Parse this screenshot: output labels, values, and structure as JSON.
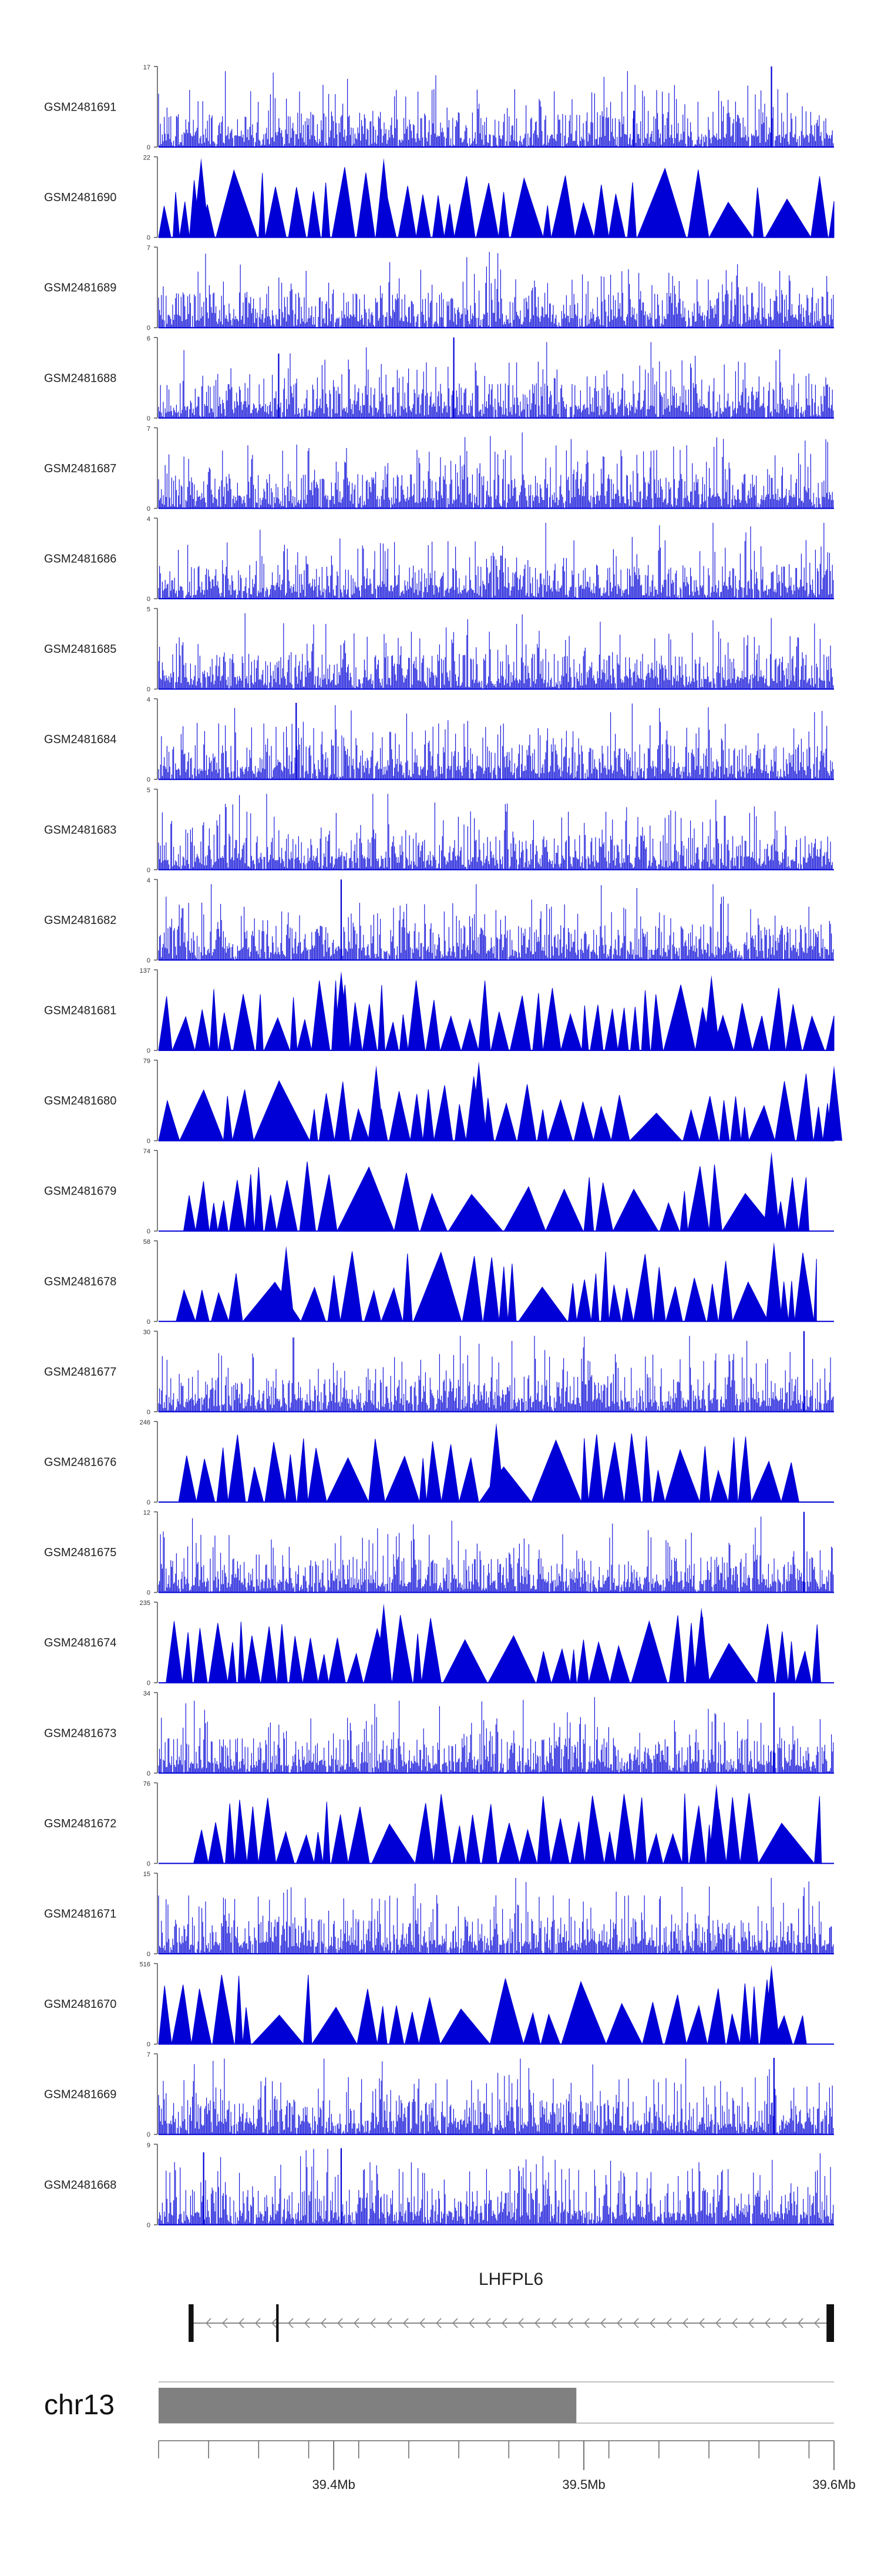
{
  "chart_data": {
    "type": "genome-browser-tracks",
    "x_units": "Mb",
    "xlim": [
      39.33,
      39.6
    ],
    "tracks": [
      {
        "name": "GSM2481691",
        "ymax": "17",
        "ymin": "0",
        "style": "bars",
        "seed": 11,
        "peaks": [
          [
            39.52,
            0.45
          ],
          [
            39.575,
            1.0
          ]
        ]
      },
      {
        "name": "GSM2481690",
        "ymax": "22",
        "ymin": "0",
        "style": "triangles",
        "seed": 12,
        "peaks": [
          [
            39.347,
            1.0
          ],
          [
            39.42,
            1.0
          ]
        ]
      },
      {
        "name": "GSM2481689",
        "ymax": "7",
        "ymin": "0",
        "style": "bars",
        "seed": 13,
        "peaks": []
      },
      {
        "name": "GSM2481688",
        "ymax": "6",
        "ymin": "0",
        "style": "bars",
        "seed": 14,
        "peaks": [
          [
            39.378,
            0.8
          ],
          [
            39.448,
            1.0
          ]
        ]
      },
      {
        "name": "GSM2481687",
        "ymax": "7",
        "ymin": "0",
        "style": "bars",
        "seed": 15,
        "peaks": []
      },
      {
        "name": "GSM2481686",
        "ymax": "4",
        "ymin": "0",
        "style": "bars",
        "seed": 16,
        "peaks": []
      },
      {
        "name": "GSM2481685",
        "ymax": "5",
        "ymin": "0",
        "style": "bars",
        "seed": 17,
        "peaks": []
      },
      {
        "name": "GSM2481684",
        "ymax": "4",
        "ymin": "0",
        "style": "bars",
        "seed": 18,
        "peaks": [
          [
            39.385,
            0.95
          ]
        ]
      },
      {
        "name": "GSM2481683",
        "ymax": "5",
        "ymin": "0",
        "style": "bars",
        "seed": 19,
        "peaks": []
      },
      {
        "name": "GSM2481682",
        "ymax": "4",
        "ymin": "0",
        "style": "bars",
        "seed": 20,
        "peaks": [
          [
            39.403,
            1.0
          ]
        ]
      },
      {
        "name": "GSM2481681",
        "ymax": "137",
        "ymin": "0",
        "style": "triangles",
        "seed": 21,
        "peaks": [
          [
            39.403,
            1.0
          ],
          [
            39.551,
            0.95
          ]
        ]
      },
      {
        "name": "GSM2481680",
        "ymax": "79",
        "ymin": "0",
        "style": "triangles",
        "seed": 22,
        "peaks": [
          [
            39.417,
            0.95
          ],
          [
            39.458,
            1.0
          ],
          [
            39.6,
            0.95
          ]
        ]
      },
      {
        "name": "GSM2481679",
        "ymax": "74",
        "ymin": "0",
        "style": "triangles",
        "seed": 23,
        "peaks": [
          [
            39.575,
            1.0
          ]
        ],
        "span": [
          39.34,
          39.59
        ]
      },
      {
        "name": "GSM2481678",
        "ymax": "58",
        "ymin": "0",
        "style": "triangles",
        "seed": 24,
        "peaks": [
          [
            39.381,
            0.95
          ],
          [
            39.576,
            1.0
          ]
        ],
        "span": [
          39.337,
          39.593
        ]
      },
      {
        "name": "GSM2481677",
        "ymax": "30",
        "ymin": "0",
        "style": "bars",
        "seed": 25,
        "peaks": [
          [
            39.588,
            1.0
          ]
        ]
      },
      {
        "name": "GSM2481676",
        "ymax": "246",
        "ymin": "0",
        "style": "triangles",
        "seed": 26,
        "peaks": [
          [
            39.465,
            1.0
          ]
        ],
        "span": [
          39.338,
          39.586
        ]
      },
      {
        "name": "GSM2481675",
        "ymax": "12",
        "ymin": "0",
        "style": "bars",
        "seed": 27,
        "peaks": [
          [
            39.588,
            1.0
          ]
        ]
      },
      {
        "name": "GSM2481674",
        "ymax": "235",
        "ymin": "0",
        "style": "triangles",
        "seed": 28,
        "peaks": [
          [
            39.42,
            1.0
          ],
          [
            39.547,
            0.95
          ]
        ],
        "span": [
          39.333,
          39.595
        ]
      },
      {
        "name": "GSM2481673",
        "ymax": "34",
        "ymin": "0",
        "style": "bars",
        "seed": 29,
        "peaks": [
          [
            39.576,
            1.0
          ]
        ]
      },
      {
        "name": "GSM2481672",
        "ymax": "76",
        "ymin": "0",
        "style": "triangles",
        "seed": 30,
        "peaks": [
          [
            39.553,
            1.0
          ]
        ],
        "span": [
          39.344,
          39.595
        ]
      },
      {
        "name": "GSM2481671",
        "ymax": "15",
        "ymin": "0",
        "style": "bars",
        "seed": 31,
        "peaks": []
      },
      {
        "name": "GSM2481670",
        "ymax": "516",
        "ymin": "0",
        "style": "triangles",
        "seed": 32,
        "peaks": [
          [
            39.575,
            1.0
          ]
        ],
        "span": [
          39.33,
          39.589
        ]
      },
      {
        "name": "GSM2481669",
        "ymax": "7",
        "ymin": "0",
        "style": "bars",
        "seed": 33,
        "peaks": [
          [
            39.576,
            0.95
          ]
        ]
      },
      {
        "name": "GSM2481668",
        "ymax": "9",
        "ymin": "0",
        "style": "bars",
        "seed": 34,
        "peaks": [
          [
            39.348,
            0.9
          ],
          [
            39.403,
            0.95
          ]
        ]
      }
    ],
    "gene": {
      "name": "LHFPL6",
      "strand": "-",
      "start": 39.342,
      "end": 39.6,
      "exons": [
        [
          39.342,
          39.344
        ],
        [
          39.377,
          39.378
        ],
        [
          39.597,
          39.6
        ]
      ]
    },
    "chromosome": {
      "name": "chr13",
      "highlight": [
        39.33,
        39.497
      ],
      "tick_labels": [
        {
          "value": 39.4,
          "label": "39.4Mb"
        },
        {
          "value": 39.5,
          "label": "39.5Mb"
        },
        {
          "value": 39.6,
          "label": "39.6Mb"
        }
      ]
    }
  },
  "colors": {
    "signal": "#0000d6",
    "axis": "#555555",
    "ideogram": "#808080"
  }
}
